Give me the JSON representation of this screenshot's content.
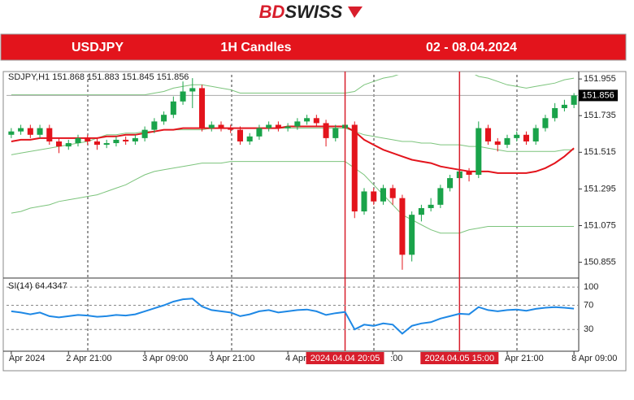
{
  "header": {
    "logo_bd": "BD",
    "logo_swiss": "SWISS",
    "symbol": "USDJPY",
    "timeframe": "1H Candles",
    "dates": "02 - 08.04.2024"
  },
  "chart_data": [
    {
      "type": "candlestick",
      "title": "SDJPY,H1  151.868 151.883 151.845 151.856",
      "categories": [
        "Apr 2024",
        null,
        null,
        null,
        null,
        null,
        "2 Apr 21:00",
        null,
        null,
        null,
        null,
        null,
        null,
        null,
        "3 Apr 09:00",
        null,
        null,
        null,
        null,
        null,
        null,
        "3 Apr 21:00",
        null,
        null,
        null,
        null,
        null,
        null,
        null,
        "4 Apr",
        null,
        null,
        null,
        null,
        null,
        "2024.04.04 20:05",
        null,
        null,
        null,
        null,
        ":00",
        null,
        null,
        null,
        null,
        null,
        null,
        "2024.04.05 15:00",
        null,
        null,
        null,
        null,
        "Apr 21:00",
        null,
        null,
        null,
        null,
        null,
        null,
        "8 Apr 09:00"
      ],
      "markers": [
        "2024.04.04 20:05",
        "2024.04.05 15:00"
      ],
      "marker_color": "#d81e2c",
      "up_color": "#1aa34a",
      "down_color": "#e3141c",
      "open": [
        151.62,
        151.64,
        151.66,
        151.62,
        151.66,
        151.58,
        151.55,
        151.57,
        151.6,
        151.58,
        151.56,
        151.57,
        151.59,
        151.58,
        151.6,
        151.65,
        151.7,
        151.74,
        151.82,
        151.88,
        151.9,
        151.66,
        151.68,
        151.66,
        151.65,
        151.58,
        151.61,
        151.66,
        151.68,
        151.66,
        151.67,
        151.7,
        151.72,
        151.69,
        151.6,
        151.66,
        151.68,
        151.16,
        151.28,
        151.22,
        151.3,
        151.24,
        150.9,
        151.14,
        151.18,
        151.2,
        151.3,
        151.36,
        151.4,
        151.38,
        151.66,
        151.58,
        151.56,
        151.6,
        151.62,
        151.58,
        151.66,
        151.72,
        151.78,
        151.8
      ],
      "high": [
        151.66,
        151.68,
        151.68,
        151.68,
        151.68,
        151.6,
        151.59,
        151.62,
        151.62,
        151.6,
        151.59,
        151.61,
        151.61,
        151.62,
        151.67,
        151.72,
        151.76,
        151.85,
        151.94,
        151.96,
        151.92,
        151.7,
        151.7,
        151.68,
        151.67,
        151.63,
        151.68,
        151.7,
        151.7,
        151.69,
        151.72,
        151.74,
        151.74,
        151.71,
        151.68,
        151.7,
        151.7,
        151.3,
        151.3,
        151.32,
        151.32,
        151.26,
        151.16,
        151.2,
        151.24,
        151.32,
        151.38,
        151.42,
        151.42,
        151.7,
        151.68,
        151.6,
        151.62,
        151.64,
        151.64,
        151.68,
        151.74,
        151.81,
        151.83,
        151.87
      ],
      "low": [
        151.6,
        151.62,
        151.6,
        151.6,
        151.56,
        151.51,
        151.53,
        151.55,
        151.56,
        151.53,
        151.54,
        151.55,
        151.56,
        151.56,
        151.58,
        151.63,
        151.68,
        151.72,
        151.8,
        151.78,
        151.64,
        151.64,
        151.64,
        151.63,
        151.56,
        151.56,
        151.59,
        151.64,
        151.64,
        151.64,
        151.65,
        151.68,
        151.67,
        151.55,
        151.58,
        151.62,
        151.12,
        151.14,
        151.2,
        151.2,
        151.2,
        150.81,
        150.86,
        151.1,
        151.16,
        151.18,
        151.28,
        151.34,
        151.34,
        151.36,
        151.56,
        151.52,
        151.54,
        151.58,
        151.56,
        151.56,
        151.64,
        151.7,
        151.76,
        151.78
      ],
      "close": [
        151.64,
        151.66,
        151.62,
        151.66,
        151.58,
        151.55,
        151.57,
        151.6,
        151.58,
        151.56,
        151.57,
        151.59,
        151.58,
        151.6,
        151.65,
        151.7,
        151.74,
        151.82,
        151.88,
        151.9,
        151.66,
        151.68,
        151.66,
        151.65,
        151.58,
        151.61,
        151.66,
        151.68,
        151.66,
        151.67,
        151.7,
        151.72,
        151.69,
        151.6,
        151.66,
        151.68,
        151.16,
        151.28,
        151.22,
        151.3,
        151.24,
        150.9,
        151.14,
        151.18,
        151.2,
        151.3,
        151.36,
        151.4,
        151.38,
        151.66,
        151.58,
        151.56,
        151.6,
        151.62,
        151.58,
        151.66,
        151.72,
        151.78,
        151.8,
        151.856
      ],
      "series": [
        {
          "color": "#7cc47c",
          "values": [
            151.86,
            151.86,
            151.86,
            151.86,
            151.86,
            151.86,
            151.86,
            151.86,
            151.86,
            151.86,
            151.86,
            151.86,
            151.86,
            151.86,
            151.86,
            151.87,
            151.88,
            151.9,
            151.91,
            151.92,
            151.92,
            151.91,
            151.9,
            151.89,
            151.87,
            151.87,
            151.87,
            151.87,
            151.87,
            151.87,
            151.87,
            151.87,
            151.87,
            151.87,
            151.87,
            151.87,
            151.88,
            151.92,
            151.94,
            151.96,
            151.97,
            151.99,
            152.0,
            152.0,
            152.0,
            152.0,
            152.0,
            152.0,
            152.0,
            151.97,
            151.96,
            151.94,
            151.92,
            151.91,
            151.9,
            151.91,
            151.92,
            151.93,
            151.95,
            151.96
          ]
        },
        {
          "color": "#7cc47c",
          "values": [
            151.5,
            151.51,
            151.52,
            151.53,
            151.54,
            151.55,
            151.56,
            151.57,
            151.58,
            151.6,
            151.62,
            151.62,
            151.63,
            151.63,
            151.64,
            151.64,
            151.65,
            151.65,
            151.65,
            151.65,
            151.65,
            151.66,
            151.66,
            151.66,
            151.66,
            151.66,
            151.66,
            151.66,
            151.66,
            151.66,
            151.66,
            151.66,
            151.66,
            151.66,
            151.66,
            151.66,
            151.64,
            151.62,
            151.61,
            151.6,
            151.59,
            151.58,
            151.58,
            151.57,
            151.57,
            151.56,
            151.56,
            151.56,
            151.55,
            151.55,
            151.54,
            151.53,
            151.52,
            151.52,
            151.52,
            151.52,
            151.52,
            151.52,
            151.53,
            151.53
          ]
        },
        {
          "color": "#7cc47c",
          "values": [
            151.15,
            151.16,
            151.18,
            151.19,
            151.2,
            151.22,
            151.23,
            151.24,
            151.25,
            151.26,
            151.28,
            151.3,
            151.32,
            151.35,
            151.38,
            151.4,
            151.41,
            151.42,
            151.43,
            151.44,
            151.45,
            151.45,
            151.45,
            151.46,
            151.46,
            151.46,
            151.46,
            151.46,
            151.46,
            151.46,
            151.46,
            151.46,
            151.46,
            151.46,
            151.46,
            151.46,
            151.42,
            151.38,
            151.32,
            151.26,
            151.2,
            151.14,
            151.11,
            151.08,
            151.05,
            151.03,
            151.03,
            151.03,
            151.05,
            151.06,
            151.07,
            151.07,
            151.07,
            151.07,
            151.07,
            151.07,
            151.07,
            151.07,
            151.07,
            151.07
          ]
        },
        {
          "color": "#e3141c",
          "values": [
            151.58,
            151.59,
            151.59,
            151.6,
            151.6,
            151.6,
            151.6,
            151.6,
            151.6,
            151.6,
            151.61,
            151.61,
            151.62,
            151.62,
            151.63,
            151.64,
            151.65,
            151.65,
            151.66,
            151.66,
            151.66,
            151.66,
            151.66,
            151.66,
            151.66,
            151.66,
            151.66,
            151.66,
            151.66,
            151.67,
            151.67,
            151.67,
            151.67,
            151.67,
            151.67,
            151.67,
            151.64,
            151.59,
            151.56,
            151.53,
            151.51,
            151.49,
            151.47,
            151.46,
            151.45,
            151.43,
            151.42,
            151.41,
            151.4,
            151.4,
            151.4,
            151.39,
            151.39,
            151.39,
            151.39,
            151.4,
            151.42,
            151.45,
            151.49,
            151.54
          ]
        }
      ],
      "last_price": 151.856,
      "ylim": [
        150.77,
        151.98
      ],
      "yticks": [
        151.955,
        151.735,
        151.515,
        151.295,
        151.075,
        150.855
      ]
    },
    {
      "type": "line",
      "title": "SI(14) 64.4347",
      "series": [
        {
          "color": "#1e88e5",
          "values": [
            60,
            58,
            55,
            58,
            52,
            50,
            52,
            54,
            53,
            51,
            52,
            54,
            53,
            55,
            60,
            65,
            70,
            76,
            80,
            81,
            68,
            62,
            60,
            58,
            52,
            55,
            60,
            62,
            58,
            60,
            62,
            63,
            60,
            54,
            57,
            59,
            30,
            38,
            36,
            40,
            38,
            23,
            36,
            40,
            42,
            48,
            52,
            56,
            55,
            67,
            62,
            60,
            62,
            63,
            61,
            64,
            66,
            67,
            66,
            64.4347
          ]
        }
      ],
      "ylim": [
        -6,
        111
      ],
      "yticks": [
        100,
        70,
        30
      ]
    }
  ]
}
